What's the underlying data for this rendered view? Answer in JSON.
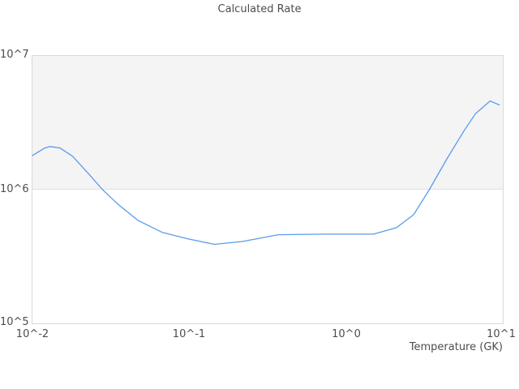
{
  "chart": {
    "title": "Calculated Rate",
    "x_axis_title": "Temperature (GK)"
  },
  "colors": {
    "line": "#5b9bea",
    "band_fill": "#f4f4f4",
    "plot_border": "#d9d9d9",
    "gridline": "#e0e0e0",
    "text": "#4d4d4d",
    "background": "#ffffff"
  },
  "chart_data": {
    "type": "line",
    "title": "Calculated Rate",
    "xlabel": "Temperature (GK)",
    "ylabel": "",
    "x_scale": "log",
    "y_scale": "log",
    "xlim": [
      0.01,
      10
    ],
    "ylim": [
      100000,
      10000000
    ],
    "x_tick_labels": [
      "10^-2",
      "10^-1",
      "10^0",
      "10^1"
    ],
    "y_tick_labels": [
      "10^5",
      "10^6",
      "10^7"
    ],
    "legend": "none",
    "grid": "alternating horizontal decade bands; band between 10^6 and 10^7 shaded light gray",
    "series": [
      {
        "name": "calculated-rate",
        "color": "#5b9bea",
        "points": [
          [
            0.01,
            1800000.0
          ],
          [
            0.012,
            2050000.0
          ],
          [
            0.013,
            2100000.0
          ],
          [
            0.015,
            2050000.0
          ],
          [
            0.018,
            1780000.0
          ],
          [
            0.023,
            1300000.0
          ],
          [
            0.028,
            1000000.0
          ],
          [
            0.035,
            780000.0
          ],
          [
            0.047,
            590000.0
          ],
          [
            0.067,
            480000.0
          ],
          [
            0.097,
            430000.0
          ],
          [
            0.145,
            390000.0
          ],
          [
            0.22,
            410000.0
          ],
          [
            0.37,
            460000.0
          ],
          [
            0.73,
            465000.0
          ],
          [
            1.5,
            465000.0
          ],
          [
            2.1,
            520000.0
          ],
          [
            2.7,
            650000.0
          ],
          [
            3.4,
            1000000.0
          ],
          [
            4.4,
            1700000.0
          ],
          [
            5.6,
            2700000.0
          ],
          [
            6.7,
            3700000.0
          ],
          [
            8.3,
            4600000.0
          ],
          [
            9.5,
            4300000.0
          ]
        ]
      }
    ]
  }
}
